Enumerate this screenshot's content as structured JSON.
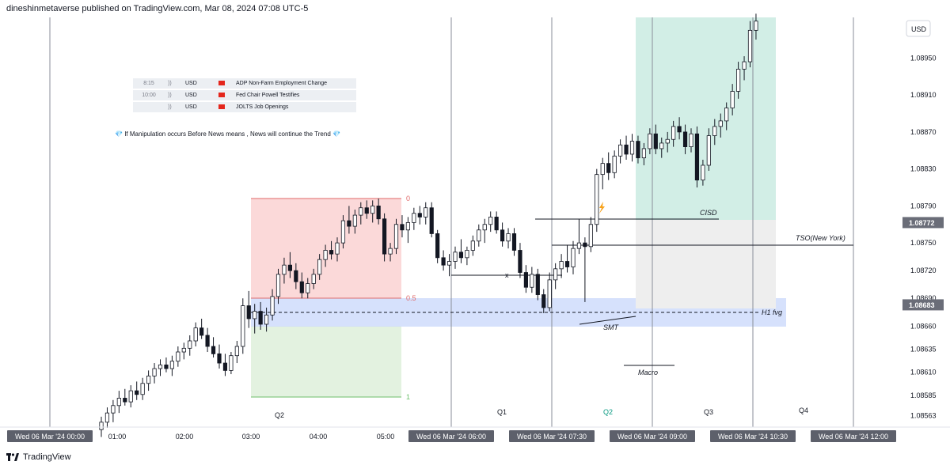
{
  "header": {
    "text": "dineshinmetaverse published on TradingView.com, Mar 08, 2024 07:08 UTC-5"
  },
  "footer": {
    "brand": "TradingView"
  },
  "news": [
    {
      "time": "8:15",
      "arrows": "))",
      "currency": "USD",
      "event": "ADP Non-Farm Employment Change"
    },
    {
      "time": "10:00",
      "arrows": "))",
      "currency": "USD",
      "event": "Fed Chair Powell Testifies"
    },
    {
      "time": "",
      "arrows": "))",
      "currency": "USD",
      "event": "JOLTS Job Openings"
    }
  ],
  "note": {
    "gem_left": "💎",
    "text": "If Manipulation occurs Before News means , News will continue the Trend",
    "gem_right": "💎"
  },
  "chart_data": {
    "type": "candlestick",
    "symbol_currency": "USD",
    "y_axis": {
      "ticks": [
        "1.08950",
        "1.08910",
        "1.08870",
        "1.08830",
        "1.08790",
        "1.08750",
        "1.08720",
        "1.08690",
        "1.08660",
        "1.08635",
        "1.08610",
        "1.08585",
        "1.08563"
      ],
      "price_tags": [
        {
          "label": "1.08772",
          "value": 1.08772
        },
        {
          "label": "1.08683",
          "value": 1.08683
        }
      ]
    },
    "x_axis": {
      "hour_labels": [
        "01:00",
        "02:00",
        "03:00",
        "04:00",
        "05:00"
      ],
      "date_labels": [
        "Wed 06 Mar '24   00:00",
        "Wed 06 Mar '24   06:00",
        "Wed 06 Mar '24   07:30",
        "Wed 06 Mar '24   09:00",
        "Wed 06 Mar '24   10:30",
        "Wed 06 Mar '24   12:00"
      ]
    },
    "quarters": [
      {
        "label": "Q2",
        "color": "#131722"
      },
      {
        "label": "Q1",
        "color": "#131722"
      },
      {
        "label": "Q2",
        "color": "#089981"
      },
      {
        "label": "Q3",
        "color": "#131722"
      },
      {
        "label": "Q4",
        "color": "#131722"
      }
    ],
    "fib": {
      "levels": [
        "0",
        "0.5",
        "1"
      ]
    },
    "annotations": {
      "cisd": "CISD",
      "tso": "TSO(New York)",
      "h1fvg": "H1 fvg",
      "smt": "SMT",
      "macro": "Macro",
      "x": "x"
    },
    "candles": [
      {
        "o": 1.08548,
        "h": 1.08562,
        "l": 1.0854,
        "c": 1.08556
      },
      {
        "o": 1.08556,
        "h": 1.08572,
        "l": 1.0855,
        "c": 1.08566
      },
      {
        "o": 1.08566,
        "h": 1.0858,
        "l": 1.08556,
        "c": 1.08574
      },
      {
        "o": 1.08574,
        "h": 1.0859,
        "l": 1.08566,
        "c": 1.08582
      },
      {
        "o": 1.08582,
        "h": 1.08592,
        "l": 1.08574,
        "c": 1.08578
      },
      {
        "o": 1.08578,
        "h": 1.08596,
        "l": 1.08572,
        "c": 1.0859
      },
      {
        "o": 1.0859,
        "h": 1.086,
        "l": 1.0858,
        "c": 1.08586
      },
      {
        "o": 1.08586,
        "h": 1.08604,
        "l": 1.0858,
        "c": 1.08598
      },
      {
        "o": 1.08598,
        "h": 1.08612,
        "l": 1.0859,
        "c": 1.08606
      },
      {
        "o": 1.08606,
        "h": 1.0862,
        "l": 1.08598,
        "c": 1.08614
      },
      {
        "o": 1.08614,
        "h": 1.08624,
        "l": 1.08606,
        "c": 1.08618
      },
      {
        "o": 1.08618,
        "h": 1.08626,
        "l": 1.0861,
        "c": 1.08614
      },
      {
        "o": 1.08614,
        "h": 1.08628,
        "l": 1.08606,
        "c": 1.08622
      },
      {
        "o": 1.08622,
        "h": 1.08638,
        "l": 1.08616,
        "c": 1.08632
      },
      {
        "o": 1.08632,
        "h": 1.08642,
        "l": 1.08624,
        "c": 1.08636
      },
      {
        "o": 1.08636,
        "h": 1.0865,
        "l": 1.08628,
        "c": 1.08644
      },
      {
        "o": 1.08644,
        "h": 1.08664,
        "l": 1.08638,
        "c": 1.08658
      },
      {
        "o": 1.08658,
        "h": 1.08668,
        "l": 1.08646,
        "c": 1.0865
      },
      {
        "o": 1.0865,
        "h": 1.08658,
        "l": 1.08632,
        "c": 1.08638
      },
      {
        "o": 1.08638,
        "h": 1.08648,
        "l": 1.08626,
        "c": 1.0863
      },
      {
        "o": 1.0863,
        "h": 1.0864,
        "l": 1.08614,
        "c": 1.0862
      },
      {
        "o": 1.0862,
        "h": 1.0863,
        "l": 1.08606,
        "c": 1.08612
      },
      {
        "o": 1.08612,
        "h": 1.08632,
        "l": 1.08608,
        "c": 1.08628
      },
      {
        "o": 1.08628,
        "h": 1.08644,
        "l": 1.0862,
        "c": 1.08638
      },
      {
        "o": 1.08638,
        "h": 1.0869,
        "l": 1.0863,
        "c": 1.08682
      },
      {
        "o": 1.08682,
        "h": 1.08698,
        "l": 1.08658,
        "c": 1.08668
      },
      {
        "o": 1.08668,
        "h": 1.08684,
        "l": 1.08652,
        "c": 1.08676
      },
      {
        "o": 1.08676,
        "h": 1.08686,
        "l": 1.08656,
        "c": 1.08662
      },
      {
        "o": 1.08662,
        "h": 1.0868,
        "l": 1.08654,
        "c": 1.08672
      },
      {
        "o": 1.08672,
        "h": 1.087,
        "l": 1.08666,
        "c": 1.08692
      },
      {
        "o": 1.08692,
        "h": 1.08722,
        "l": 1.08684,
        "c": 1.08716
      },
      {
        "o": 1.08716,
        "h": 1.08734,
        "l": 1.08706,
        "c": 1.08726
      },
      {
        "o": 1.08726,
        "h": 1.0874,
        "l": 1.08712,
        "c": 1.0872
      },
      {
        "o": 1.0872,
        "h": 1.08728,
        "l": 1.087,
        "c": 1.08708
      },
      {
        "o": 1.08708,
        "h": 1.08718,
        "l": 1.0869,
        "c": 1.08696
      },
      {
        "o": 1.08696,
        "h": 1.08712,
        "l": 1.0869,
        "c": 1.08706
      },
      {
        "o": 1.08706,
        "h": 1.08722,
        "l": 1.087,
        "c": 1.08716
      },
      {
        "o": 1.08716,
        "h": 1.08738,
        "l": 1.0871,
        "c": 1.08732
      },
      {
        "o": 1.08732,
        "h": 1.08748,
        "l": 1.08724,
        "c": 1.08742
      },
      {
        "o": 1.08742,
        "h": 1.08752,
        "l": 1.08732,
        "c": 1.08738
      },
      {
        "o": 1.08738,
        "h": 1.08756,
        "l": 1.0873,
        "c": 1.0875
      },
      {
        "o": 1.0875,
        "h": 1.0878,
        "l": 1.08744,
        "c": 1.08774
      },
      {
        "o": 1.08774,
        "h": 1.0879,
        "l": 1.0876,
        "c": 1.08768
      },
      {
        "o": 1.08768,
        "h": 1.08786,
        "l": 1.0876,
        "c": 1.0878
      },
      {
        "o": 1.0878,
        "h": 1.08794,
        "l": 1.0877,
        "c": 1.08788
      },
      {
        "o": 1.08788,
        "h": 1.08796,
        "l": 1.08776,
        "c": 1.08782
      },
      {
        "o": 1.08782,
        "h": 1.08796,
        "l": 1.08772,
        "c": 1.0879
      },
      {
        "o": 1.0879,
        "h": 1.08798,
        "l": 1.0877,
        "c": 1.08776
      },
      {
        "o": 1.08776,
        "h": 1.08782,
        "l": 1.0873,
        "c": 1.08738
      },
      {
        "o": 1.08738,
        "h": 1.0875,
        "l": 1.0873,
        "c": 1.08744
      },
      {
        "o": 1.08744,
        "h": 1.08776,
        "l": 1.08738,
        "c": 1.0877
      },
      {
        "o": 1.0877,
        "h": 1.0878,
        "l": 1.08756,
        "c": 1.08764
      },
      {
        "o": 1.08764,
        "h": 1.08778,
        "l": 1.0875,
        "c": 1.08772
      },
      {
        "o": 1.08772,
        "h": 1.08788,
        "l": 1.08764,
        "c": 1.08782
      },
      {
        "o": 1.08782,
        "h": 1.0879,
        "l": 1.0877,
        "c": 1.08778
      },
      {
        "o": 1.08778,
        "h": 1.08794,
        "l": 1.0877,
        "c": 1.08788
      },
      {
        "o": 1.08788,
        "h": 1.08794,
        "l": 1.08756,
        "c": 1.0876
      },
      {
        "o": 1.0876,
        "h": 1.08764,
        "l": 1.08728,
        "c": 1.08734
      },
      {
        "o": 1.08734,
        "h": 1.08742,
        "l": 1.0872,
        "c": 1.08726
      },
      {
        "o": 1.08726,
        "h": 1.08738,
        "l": 1.08714,
        "c": 1.0873
      },
      {
        "o": 1.0873,
        "h": 1.08746,
        "l": 1.08722,
        "c": 1.0874
      },
      {
        "o": 1.0874,
        "h": 1.08754,
        "l": 1.08728,
        "c": 1.08734
      },
      {
        "o": 1.08734,
        "h": 1.08746,
        "l": 1.08726,
        "c": 1.08742
      },
      {
        "o": 1.08742,
        "h": 1.08758,
        "l": 1.08736,
        "c": 1.08752
      },
      {
        "o": 1.08752,
        "h": 1.0877,
        "l": 1.08746,
        "c": 1.08764
      },
      {
        "o": 1.08764,
        "h": 1.08776,
        "l": 1.0875,
        "c": 1.0877
      },
      {
        "o": 1.0877,
        "h": 1.08784,
        "l": 1.08762,
        "c": 1.08778
      },
      {
        "o": 1.08778,
        "h": 1.08784,
        "l": 1.0876,
        "c": 1.08764
      },
      {
        "o": 1.08764,
        "h": 1.08772,
        "l": 1.08746,
        "c": 1.08752
      },
      {
        "o": 1.08752,
        "h": 1.08766,
        "l": 1.08744,
        "c": 1.0876
      },
      {
        "o": 1.0876,
        "h": 1.08766,
        "l": 1.08736,
        "c": 1.08742
      },
      {
        "o": 1.08742,
        "h": 1.0875,
        "l": 1.08712,
        "c": 1.08718
      },
      {
        "o": 1.08718,
        "h": 1.08726,
        "l": 1.08696,
        "c": 1.08702
      },
      {
        "o": 1.08702,
        "h": 1.08724,
        "l": 1.08696,
        "c": 1.08716
      },
      {
        "o": 1.08716,
        "h": 1.08722,
        "l": 1.08688,
        "c": 1.08694
      },
      {
        "o": 1.08694,
        "h": 1.087,
        "l": 1.08674,
        "c": 1.0868
      },
      {
        "o": 1.0868,
        "h": 1.08718,
        "l": 1.08676,
        "c": 1.0871
      },
      {
        "o": 1.0871,
        "h": 1.08728,
        "l": 1.087,
        "c": 1.08722
      },
      {
        "o": 1.08722,
        "h": 1.08738,
        "l": 1.08712,
        "c": 1.0873
      },
      {
        "o": 1.0873,
        "h": 1.08748,
        "l": 1.08718,
        "c": 1.08724
      },
      {
        "o": 1.08724,
        "h": 1.08752,
        "l": 1.08716,
        "c": 1.08744
      },
      {
        "o": 1.08744,
        "h": 1.08776,
        "l": 1.08738,
        "c": 1.0875
      },
      {
        "o": 1.0875,
        "h": 1.08756,
        "l": 1.08686,
        "c": 1.08746
      },
      {
        "o": 1.08746,
        "h": 1.08778,
        "l": 1.0874,
        "c": 1.0877
      },
      {
        "o": 1.0877,
        "h": 1.0883,
        "l": 1.08762,
        "c": 1.08824
      },
      {
        "o": 1.08824,
        "h": 1.08842,
        "l": 1.08808,
        "c": 1.08836
      },
      {
        "o": 1.08836,
        "h": 1.08848,
        "l": 1.08818,
        "c": 1.08826
      },
      {
        "o": 1.08826,
        "h": 1.0885,
        "l": 1.0882,
        "c": 1.08844
      },
      {
        "o": 1.08844,
        "h": 1.08862,
        "l": 1.08836,
        "c": 1.08856
      },
      {
        "o": 1.08856,
        "h": 1.08866,
        "l": 1.0884,
        "c": 1.08846
      },
      {
        "o": 1.08846,
        "h": 1.08868,
        "l": 1.08838,
        "c": 1.0886
      },
      {
        "o": 1.0886,
        "h": 1.08866,
        "l": 1.08836,
        "c": 1.08842
      },
      {
        "o": 1.08842,
        "h": 1.08858,
        "l": 1.08834,
        "c": 1.08852
      },
      {
        "o": 1.08852,
        "h": 1.08874,
        "l": 1.08846,
        "c": 1.08868
      },
      {
        "o": 1.08868,
        "h": 1.08878,
        "l": 1.08846,
        "c": 1.08852
      },
      {
        "o": 1.08852,
        "h": 1.08864,
        "l": 1.08842,
        "c": 1.08858
      },
      {
        "o": 1.08858,
        "h": 1.0887,
        "l": 1.08848,
        "c": 1.08862
      },
      {
        "o": 1.08862,
        "h": 1.08882,
        "l": 1.08854,
        "c": 1.08876
      },
      {
        "o": 1.08876,
        "h": 1.08886,
        "l": 1.08862,
        "c": 1.0887
      },
      {
        "o": 1.0887,
        "h": 1.08878,
        "l": 1.08846,
        "c": 1.08854
      },
      {
        "o": 1.08854,
        "h": 1.08874,
        "l": 1.08848,
        "c": 1.08868
      },
      {
        "o": 1.08868,
        "h": 1.08876,
        "l": 1.0881,
        "c": 1.08818
      },
      {
        "o": 1.08818,
        "h": 1.0884,
        "l": 1.08812,
        "c": 1.08834
      },
      {
        "o": 1.08834,
        "h": 1.08874,
        "l": 1.08828,
        "c": 1.08866
      },
      {
        "o": 1.08866,
        "h": 1.08884,
        "l": 1.08856,
        "c": 1.08876
      },
      {
        "o": 1.08876,
        "h": 1.0889,
        "l": 1.08864,
        "c": 1.08882
      },
      {
        "o": 1.08882,
        "h": 1.08902,
        "l": 1.08872,
        "c": 1.08896
      },
      {
        "o": 1.08896,
        "h": 1.08922,
        "l": 1.08888,
        "c": 1.08914
      },
      {
        "o": 1.08914,
        "h": 1.08946,
        "l": 1.08906,
        "c": 1.08938
      },
      {
        "o": 1.08938,
        "h": 1.08952,
        "l": 1.08926,
        "c": 1.08946
      },
      {
        "o": 1.08946,
        "h": 1.0899,
        "l": 1.0894,
        "c": 1.0898
      },
      {
        "o": 1.0898,
        "h": 1.08998,
        "l": 1.0897,
        "c": 1.0899
      }
    ]
  }
}
